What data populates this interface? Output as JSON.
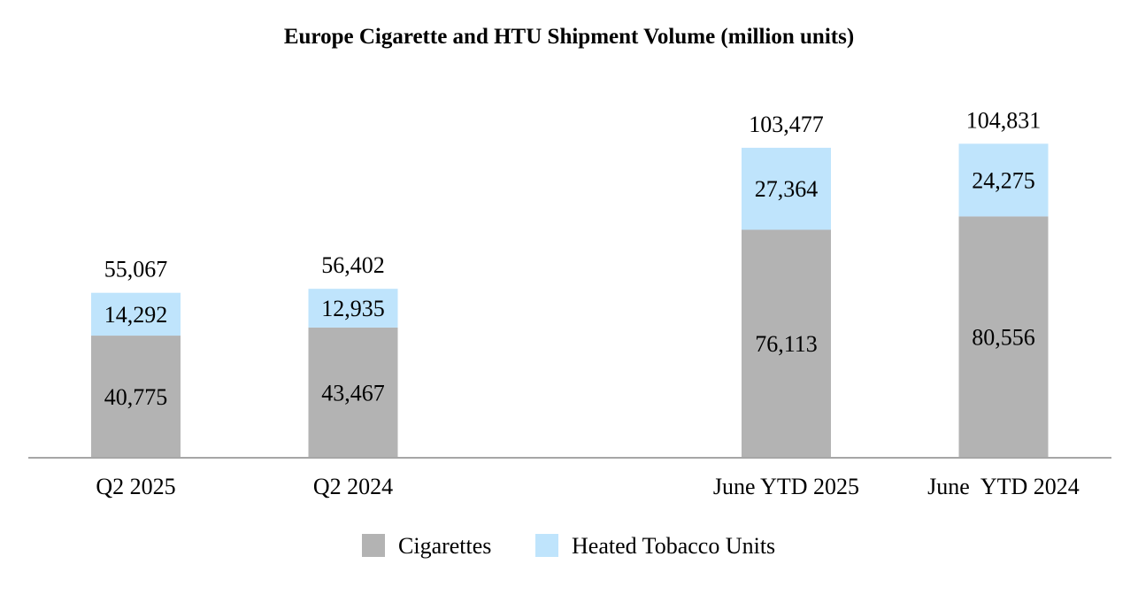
{
  "chart_data": {
    "type": "bar",
    "stacked": true,
    "title": "Europe Cigarette and HTU Shipment Volume (million units)",
    "categories": [
      "Q2 2025",
      "Q2 2024",
      "June YTD 2025",
      "June  YTD 2024"
    ],
    "series": [
      {
        "name": "Cigarettes",
        "values": [
          40775,
          43467,
          76113,
          80556
        ],
        "labels": [
          "40,775",
          "43,467",
          "76,113",
          "80,556"
        ],
        "color": "#b3b3b3"
      },
      {
        "name": "Heated Tobacco Units",
        "values": [
          14292,
          12935,
          27364,
          24275
        ],
        "labels": [
          "14,292",
          "12,935",
          "27,364",
          "24,275"
        ],
        "color": "#bfe4fc"
      }
    ],
    "total_labels": [
      "55,067",
      "56,402",
      "103,477",
      "104,831"
    ],
    "xlabel": "",
    "ylabel": "",
    "ylim": [
      0,
      120000
    ],
    "grid": false,
    "legend": "bottom-center",
    "axis_color": "#a6a6a6"
  }
}
